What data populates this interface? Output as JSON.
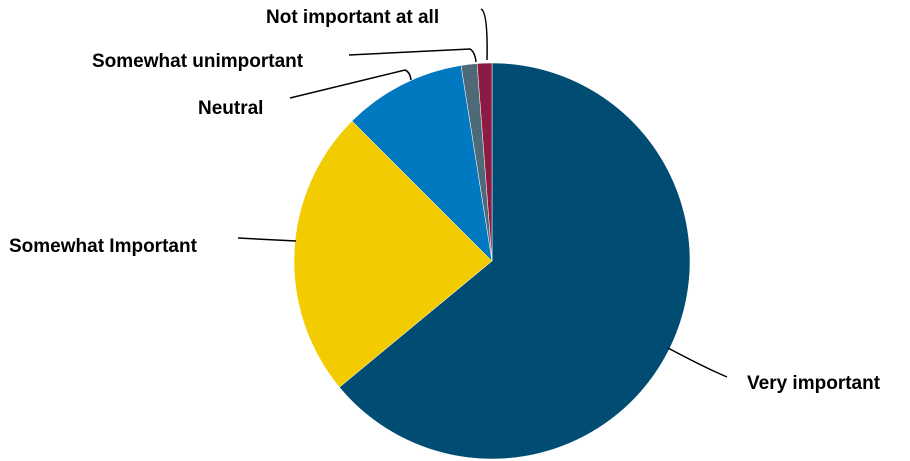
{
  "chart_data": {
    "type": "pie",
    "title": "",
    "start_angle_deg": 0,
    "direction": "clockwise",
    "legend": "none",
    "slices": [
      {
        "label": "Very important",
        "value": 64,
        "color": "#004C73"
      },
      {
        "label": "Somewhat Important",
        "value": 23.5,
        "color": "#F2CB00"
      },
      {
        "label": "Neutral",
        "value": 10,
        "color": "#0079C1"
      },
      {
        "label": "Somewhat unimportant",
        "value": 1.3,
        "color": "#4D6A76"
      },
      {
        "label": "Not important at all",
        "value": 1.2,
        "color": "#8C1A45"
      }
    ]
  }
}
